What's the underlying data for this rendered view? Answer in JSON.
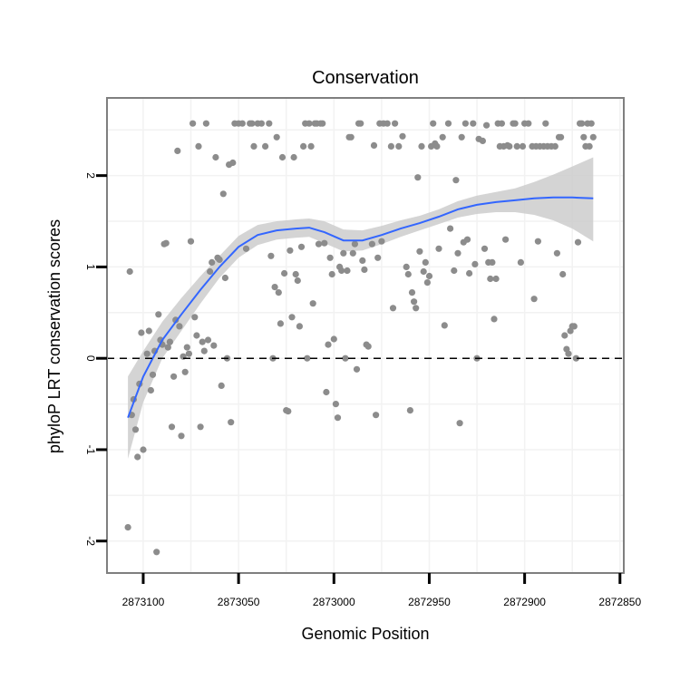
{
  "chart_data": {
    "type": "scatter",
    "title": "Conservation",
    "xlabel": "Genomic Position",
    "ylabel": "phyloP LRT conservation scores",
    "x_reversed": true,
    "xlim": [
      2873119,
      2872848
    ],
    "ylim": [
      -2.35,
      2.85
    ],
    "x_ticks": [
      2873100,
      2873050,
      2873000,
      2872950,
      2872900,
      2872850
    ],
    "x_tick_labels": [
      "2873100",
      "2873050",
      "2873000",
      "2872950",
      "2872900",
      "2872850"
    ],
    "y_ticks": [
      -2,
      -1,
      0,
      1,
      2
    ],
    "y_tick_labels": [
      "-2",
      "-1",
      "0",
      "1",
      "2"
    ],
    "grid": true,
    "reference_line": {
      "y": 0,
      "style": "dashed"
    },
    "colors": {
      "points": "#8c8c8c",
      "smooth": "#3366ff",
      "ribbon": "#cccccc",
      "panel_border": "#7f7f7f",
      "grid": "#f2f2f2"
    },
    "series": [
      {
        "type": "scatter",
        "points": [
          [
            2873108,
            -1.85
          ],
          [
            2873107,
            0.95
          ],
          [
            2873106,
            -0.62
          ],
          [
            2873105,
            -0.45
          ],
          [
            2873104,
            -0.78
          ],
          [
            2873103,
            -1.08
          ],
          [
            2873102,
            -0.28
          ],
          [
            2873101,
            0.28
          ],
          [
            2873100,
            -1.0
          ],
          [
            2873098,
            0.05
          ],
          [
            2873097,
            0.3
          ],
          [
            2873096,
            -0.35
          ],
          [
            2873095,
            -0.18
          ],
          [
            2873094,
            0.08
          ],
          [
            2873093,
            -2.12
          ],
          [
            2873092,
            0.48
          ],
          [
            2873091,
            0.2
          ],
          [
            2873090,
            0.15
          ],
          [
            2873089,
            1.25
          ],
          [
            2873088,
            1.26
          ],
          [
            2873087,
            0.12
          ],
          [
            2873086,
            0.18
          ],
          [
            2873085,
            -0.75
          ],
          [
            2873084,
            -0.2
          ],
          [
            2873083,
            0.42
          ],
          [
            2873082,
            2.27
          ],
          [
            2873081,
            0.35
          ],
          [
            2873080,
            -0.85
          ],
          [
            2873079,
            0.02
          ],
          [
            2873078,
            -0.15
          ],
          [
            2873077,
            0.12
          ],
          [
            2873076,
            0.05
          ],
          [
            2873075,
            1.28
          ],
          [
            2873074,
            2.57
          ],
          [
            2873073,
            0.45
          ],
          [
            2873072,
            0.25
          ],
          [
            2873071,
            2.32
          ],
          [
            2873070,
            -0.75
          ],
          [
            2873069,
            0.18
          ],
          [
            2873068,
            0.08
          ],
          [
            2873067,
            2.57
          ],
          [
            2873066,
            0.2
          ],
          [
            2873065,
            0.95
          ],
          [
            2873064,
            1.05
          ],
          [
            2873063,
            0.14
          ],
          [
            2873062,
            2.2
          ],
          [
            2873061,
            1.1
          ],
          [
            2873060,
            1.08
          ],
          [
            2873059,
            -0.3
          ],
          [
            2873058,
            1.8
          ],
          [
            2873057,
            0.88
          ],
          [
            2873056,
            0.0
          ],
          [
            2873055,
            2.12
          ],
          [
            2873054,
            -0.7
          ],
          [
            2873053,
            2.14
          ],
          [
            2873052,
            2.57
          ],
          [
            2873050,
            2.57
          ],
          [
            2873048,
            2.57
          ],
          [
            2873046,
            1.2
          ],
          [
            2873044,
            2.57
          ],
          [
            2873043,
            2.57
          ],
          [
            2873042,
            2.32
          ],
          [
            2873040,
            2.57
          ],
          [
            2873038,
            2.57
          ],
          [
            2873036,
            2.32
          ],
          [
            2873034,
            2.57
          ],
          [
            2873033,
            1.12
          ],
          [
            2873032,
            0.0
          ],
          [
            2873031,
            0.78
          ],
          [
            2873030,
            2.42
          ],
          [
            2873029,
            0.72
          ],
          [
            2873028,
            0.38
          ],
          [
            2873027,
            2.2
          ],
          [
            2873026,
            0.93
          ],
          [
            2873025,
            -0.57
          ],
          [
            2873024,
            -0.58
          ],
          [
            2873023,
            1.18
          ],
          [
            2873022,
            0.45
          ],
          [
            2873021,
            2.2
          ],
          [
            2873020,
            0.92
          ],
          [
            2873019,
            0.85
          ],
          [
            2873018,
            0.35
          ],
          [
            2873017,
            1.22
          ],
          [
            2873016,
            2.32
          ],
          [
            2873015,
            2.57
          ],
          [
            2873014,
            0.0
          ],
          [
            2873013,
            2.57
          ],
          [
            2873012,
            2.32
          ],
          [
            2873011,
            0.6
          ],
          [
            2873010,
            2.57
          ],
          [
            2873009,
            2.57
          ],
          [
            2873008,
            1.25
          ],
          [
            2873007,
            2.57
          ],
          [
            2873006,
            2.57
          ],
          [
            2873005,
            1.26
          ],
          [
            2873004,
            -0.37
          ],
          [
            2873003,
            0.15
          ],
          [
            2873002,
            1.1
          ],
          [
            2873001,
            0.92
          ],
          [
            2873000,
            0.21
          ],
          [
            2872999,
            -0.5
          ],
          [
            2872998,
            -0.65
          ],
          [
            2872997,
            1.0
          ],
          [
            2872996,
            0.96
          ],
          [
            2872995,
            1.15
          ],
          [
            2872994,
            0.0
          ],
          [
            2872993,
            0.96
          ],
          [
            2872992,
            2.42
          ],
          [
            2872991,
            2.42
          ],
          [
            2872990,
            1.15
          ],
          [
            2872989,
            1.25
          ],
          [
            2872988,
            -0.12
          ],
          [
            2872987,
            2.57
          ],
          [
            2872986,
            2.57
          ],
          [
            2872985,
            1.07
          ],
          [
            2872984,
            0.97
          ],
          [
            2872983,
            0.15
          ],
          [
            2872982,
            0.13
          ],
          [
            2872980,
            1.25
          ],
          [
            2872979,
            2.33
          ],
          [
            2872978,
            -0.62
          ],
          [
            2872977,
            1.1
          ],
          [
            2872976,
            2.57
          ],
          [
            2872975,
            1.28
          ],
          [
            2872974,
            2.57
          ],
          [
            2872972,
            2.57
          ],
          [
            2872970,
            2.32
          ],
          [
            2872969,
            0.55
          ],
          [
            2872968,
            2.57
          ],
          [
            2872966,
            2.32
          ],
          [
            2872964,
            2.43
          ],
          [
            2872962,
            1.0
          ],
          [
            2872961,
            0.92
          ],
          [
            2872960,
            -0.57
          ],
          [
            2872959,
            0.72
          ],
          [
            2872958,
            0.62
          ],
          [
            2872957,
            0.55
          ],
          [
            2872956,
            1.98
          ],
          [
            2872955,
            1.17
          ],
          [
            2872954,
            2.32
          ],
          [
            2872953,
            0.95
          ],
          [
            2872952,
            1.05
          ],
          [
            2872951,
            0.83
          ],
          [
            2872950,
            0.9
          ],
          [
            2872949,
            2.32
          ],
          [
            2872948,
            2.57
          ],
          [
            2872947,
            2.35
          ],
          [
            2872946,
            2.32
          ],
          [
            2872945,
            1.2
          ],
          [
            2872943,
            2.42
          ],
          [
            2872942,
            0.36
          ],
          [
            2872940,
            2.57
          ],
          [
            2872939,
            1.42
          ],
          [
            2872937,
            0.96
          ],
          [
            2872936,
            1.95
          ],
          [
            2872935,
            1.15
          ],
          [
            2872934,
            -0.71
          ],
          [
            2872933,
            2.42
          ],
          [
            2872932,
            1.27
          ],
          [
            2872931,
            2.57
          ],
          [
            2872930,
            1.3
          ],
          [
            2872929,
            0.93
          ],
          [
            2872927,
            2.57
          ],
          [
            2872926,
            1.03
          ],
          [
            2872925,
            0.0
          ],
          [
            2872924,
            2.4
          ],
          [
            2872922,
            2.38
          ],
          [
            2872921,
            1.2
          ],
          [
            2872920,
            2.55
          ],
          [
            2872919,
            1.05
          ],
          [
            2872918,
            0.87
          ],
          [
            2872917,
            1.05
          ],
          [
            2872916,
            0.43
          ],
          [
            2872915,
            0.87
          ],
          [
            2872914,
            2.57
          ],
          [
            2872913,
            2.32
          ],
          [
            2872912,
            2.57
          ],
          [
            2872911,
            2.32
          ],
          [
            2872910,
            1.3
          ],
          [
            2872909,
            2.33
          ],
          [
            2872908,
            2.32
          ],
          [
            2872906,
            2.57
          ],
          [
            2872905,
            2.57
          ],
          [
            2872904,
            2.32
          ],
          [
            2872902,
            1.05
          ],
          [
            2872901,
            2.32
          ],
          [
            2872900,
            2.57
          ],
          [
            2872898,
            2.57
          ],
          [
            2872896,
            2.32
          ],
          [
            2872895,
            0.65
          ],
          [
            2872894,
            2.32
          ],
          [
            2872893,
            1.28
          ],
          [
            2872892,
            2.32
          ],
          [
            2872890,
            2.32
          ],
          [
            2872889,
            2.57
          ],
          [
            2872888,
            2.32
          ],
          [
            2872886,
            2.32
          ],
          [
            2872884,
            2.32
          ],
          [
            2872883,
            1.15
          ],
          [
            2872882,
            2.42
          ],
          [
            2872881,
            2.42
          ],
          [
            2872880,
            0.92
          ],
          [
            2872879,
            0.25
          ],
          [
            2872878,
            0.1
          ],
          [
            2872877,
            0.05
          ],
          [
            2872876,
            0.3
          ],
          [
            2872875,
            0.35
          ],
          [
            2872874,
            0.35
          ],
          [
            2872873,
            0.0
          ],
          [
            2872872,
            1.27
          ],
          [
            2872871,
            2.57
          ],
          [
            2872870,
            2.57
          ],
          [
            2872869,
            2.42
          ],
          [
            2872868,
            2.32
          ],
          [
            2872867,
            2.57
          ],
          [
            2872866,
            2.32
          ],
          [
            2872865,
            2.57
          ],
          [
            2872864,
            2.42
          ]
        ]
      },
      {
        "type": "smooth",
        "x": [
          2873108,
          2873100,
          2873090,
          2873080,
          2873070,
          2873060,
          2873050,
          2873040,
          2873030,
          2873020,
          2873013,
          2873005,
          2872995,
          2872985,
          2872975,
          2872965,
          2872955,
          2872945,
          2872935,
          2872925,
          2872915,
          2872905,
          2872895,
          2872885,
          2872875,
          2872864
        ],
        "y": [
          -0.65,
          -0.2,
          0.2,
          0.48,
          0.75,
          1.0,
          1.22,
          1.35,
          1.4,
          1.42,
          1.43,
          1.38,
          1.29,
          1.29,
          1.35,
          1.42,
          1.48,
          1.55,
          1.63,
          1.68,
          1.71,
          1.73,
          1.75,
          1.76,
          1.76,
          1.75
        ],
        "band_lower": [
          -1.1,
          -0.48,
          0.0,
          0.3,
          0.6,
          0.88,
          1.1,
          1.24,
          1.3,
          1.32,
          1.33,
          1.26,
          1.17,
          1.18,
          1.25,
          1.33,
          1.4,
          1.47,
          1.54,
          1.58,
          1.6,
          1.6,
          1.57,
          1.51,
          1.42,
          1.28
        ],
        "band_upper": [
          -0.2,
          0.08,
          0.4,
          0.66,
          0.9,
          1.12,
          1.34,
          1.46,
          1.5,
          1.52,
          1.53,
          1.5,
          1.41,
          1.4,
          1.45,
          1.51,
          1.56,
          1.63,
          1.72,
          1.78,
          1.82,
          1.86,
          1.93,
          2.01,
          2.1,
          2.2
        ]
      }
    ]
  }
}
